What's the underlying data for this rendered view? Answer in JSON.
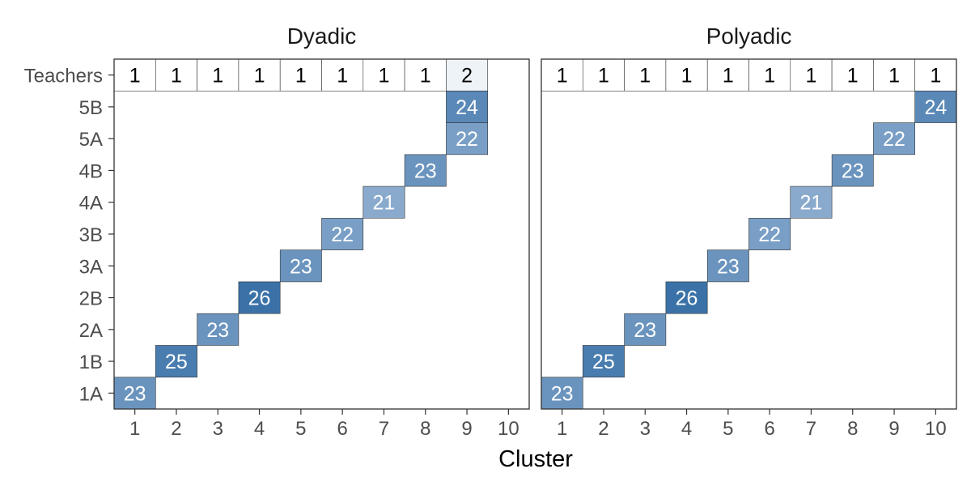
{
  "chart_data": {
    "type": "heatmap",
    "xlabel": "Cluster",
    "x_categories": [
      "1",
      "2",
      "3",
      "4",
      "5",
      "6",
      "7",
      "8",
      "9",
      "10"
    ],
    "y_categories": [
      "1A",
      "1B",
      "2A",
      "2B",
      "3A",
      "3B",
      "4A",
      "4B",
      "5A",
      "5B",
      "Teachers"
    ],
    "fill_range": [
      21,
      26
    ],
    "fill_colors": {
      "low": "#8aaacd",
      "high": "#3a72a8",
      "teacher_low": "#ffffff",
      "teacher_high": "#eef3f8"
    },
    "panels": [
      {
        "title": "Dyadic",
        "cells": [
          {
            "x": "1",
            "y": "1A",
            "value": 23
          },
          {
            "x": "2",
            "y": "1B",
            "value": 25
          },
          {
            "x": "3",
            "y": "2A",
            "value": 23
          },
          {
            "x": "4",
            "y": "2B",
            "value": 26
          },
          {
            "x": "5",
            "y": "3A",
            "value": 23
          },
          {
            "x": "6",
            "y": "3B",
            "value": 22
          },
          {
            "x": "7",
            "y": "4A",
            "value": 21
          },
          {
            "x": "8",
            "y": "4B",
            "value": 23
          },
          {
            "x": "9",
            "y": "5A",
            "value": 22
          },
          {
            "x": "9",
            "y": "5B",
            "value": 24
          }
        ],
        "teachers": [
          {
            "x": "1",
            "value": 1
          },
          {
            "x": "2",
            "value": 1
          },
          {
            "x": "3",
            "value": 1
          },
          {
            "x": "4",
            "value": 1
          },
          {
            "x": "5",
            "value": 1
          },
          {
            "x": "6",
            "value": 1
          },
          {
            "x": "7",
            "value": 1
          },
          {
            "x": "8",
            "value": 1
          },
          {
            "x": "9",
            "value": 2
          }
        ]
      },
      {
        "title": "Polyadic",
        "cells": [
          {
            "x": "1",
            "y": "1A",
            "value": 23
          },
          {
            "x": "2",
            "y": "1B",
            "value": 25
          },
          {
            "x": "3",
            "y": "2A",
            "value": 23
          },
          {
            "x": "4",
            "y": "2B",
            "value": 26
          },
          {
            "x": "5",
            "y": "3A",
            "value": 23
          },
          {
            "x": "6",
            "y": "3B",
            "value": 22
          },
          {
            "x": "7",
            "y": "4A",
            "value": 21
          },
          {
            "x": "8",
            "y": "4B",
            "value": 23
          },
          {
            "x": "9",
            "y": "5A",
            "value": 22
          },
          {
            "x": "10",
            "y": "5B",
            "value": 24
          }
        ],
        "teachers": [
          {
            "x": "1",
            "value": 1
          },
          {
            "x": "2",
            "value": 1
          },
          {
            "x": "3",
            "value": 1
          },
          {
            "x": "4",
            "value": 1
          },
          {
            "x": "5",
            "value": 1
          },
          {
            "x": "6",
            "value": 1
          },
          {
            "x": "7",
            "value": 1
          },
          {
            "x": "8",
            "value": 1
          },
          {
            "x": "9",
            "value": 1
          },
          {
            "x": "10",
            "value": 1
          }
        ]
      }
    ]
  }
}
